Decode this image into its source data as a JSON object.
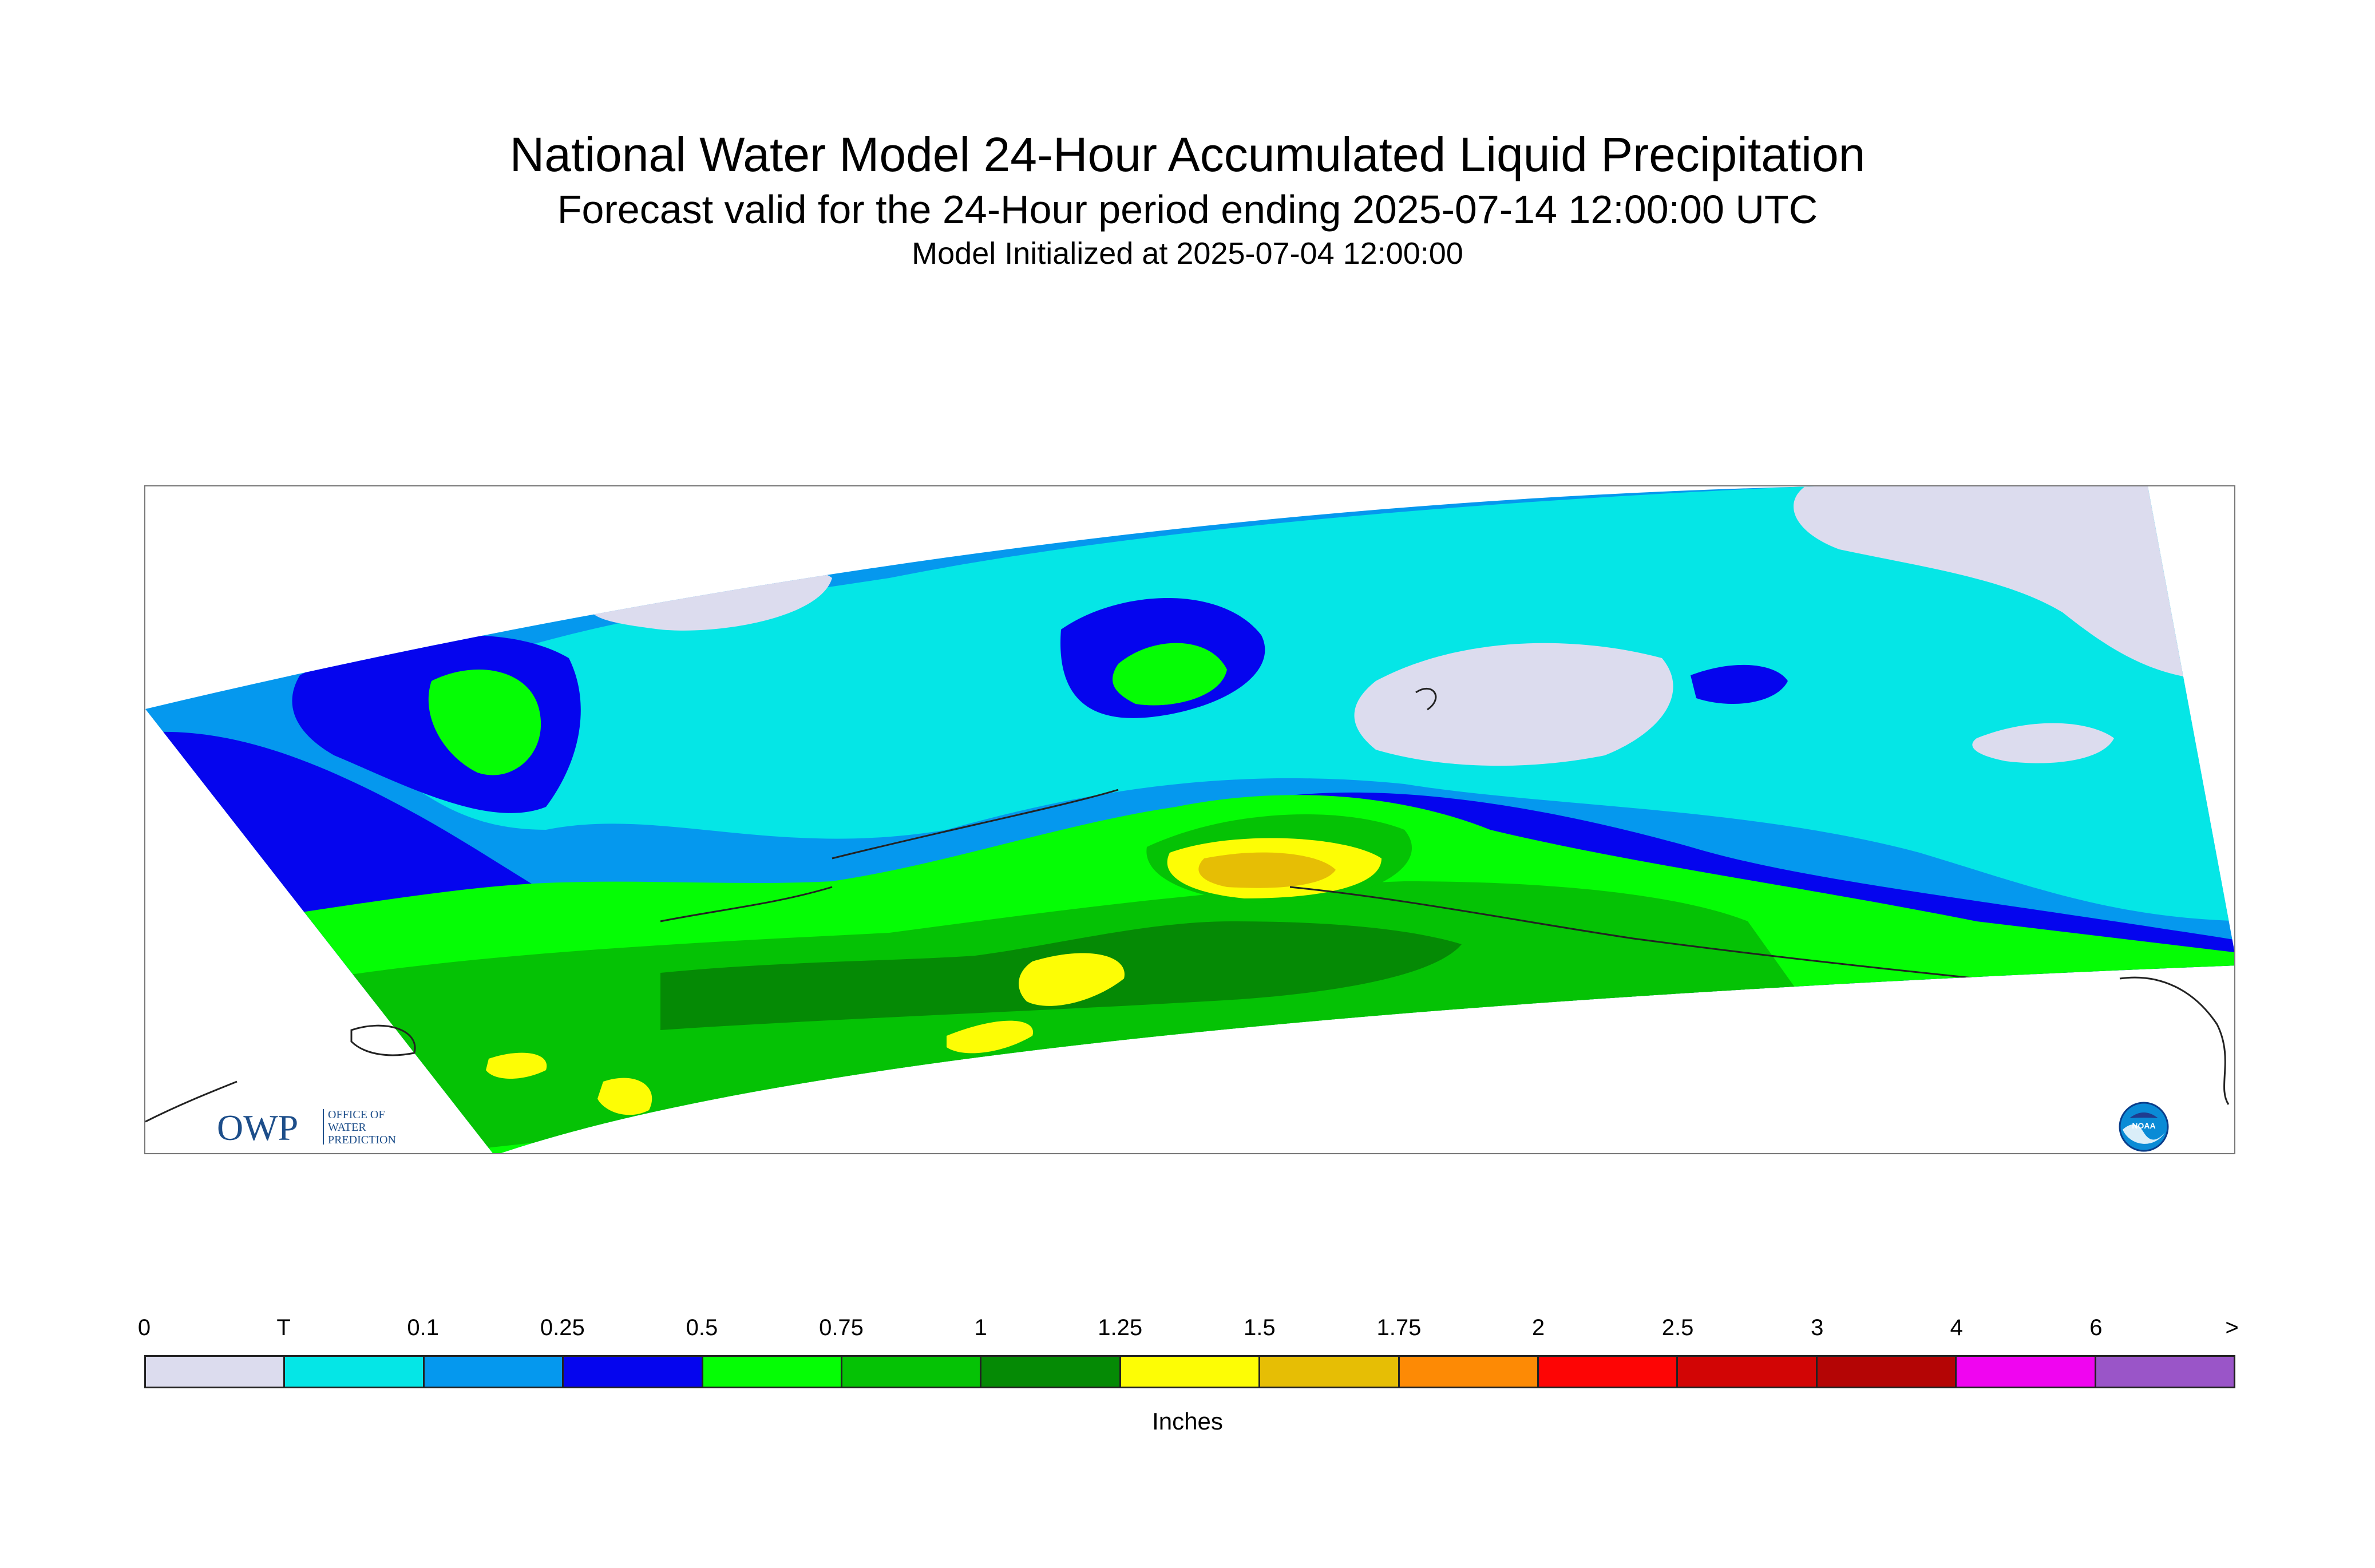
{
  "title": "National Water Model 24-Hour Accumulated Liquid Precipitation",
  "subtitle": "Forecast valid for the 24-Hour period ending 2025-07-14 12:00:00 UTC",
  "init_line": "Model Initialized at 2025-07-04 12:00:00",
  "logos": {
    "owp_text": "OWP",
    "owp_tagline": [
      "OFFICE OF",
      "WATER",
      "PREDICTION"
    ],
    "noaa_text": "NOAA"
  },
  "legend": {
    "units_label": "Inches",
    "tick_labels": [
      "0",
      "T",
      "0.1",
      "0.25",
      "0.5",
      "0.75",
      "1",
      "1.25",
      "1.5",
      "1.75",
      "2",
      "2.5",
      "3",
      "4",
      "6",
      ">"
    ],
    "colors": [
      "#dcdcee",
      "#05e6e6",
      "#0598ee",
      "#0505ee",
      "#05fd05",
      "#05c205",
      "#058a05",
      "#fdfd05",
      "#e6be05",
      "#fd8a05",
      "#fd0505",
      "#d20505",
      "#b40505",
      "#f005f0",
      "#9a55c8"
    ]
  }
}
